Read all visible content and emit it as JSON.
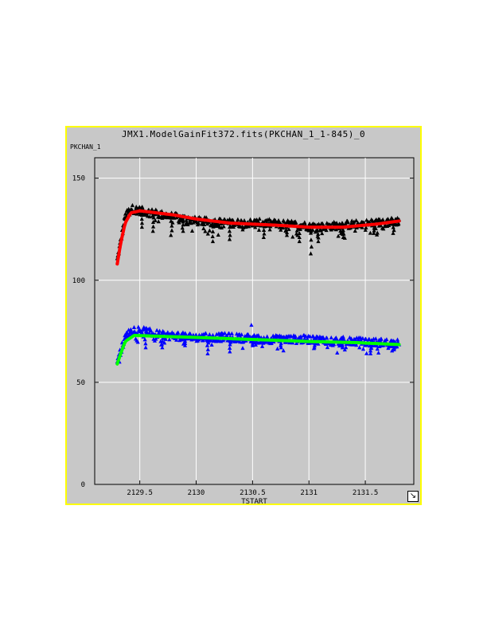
{
  "icons": {
    "resize": "resize-diagonal-icon"
  },
  "colors": {
    "frame": "#ffff00",
    "background": "#c8c8c8"
  },
  "chart_data": {
    "type": "scatter",
    "title": "JMX1.ModelGainFit372.fits(PKCHAN_1_1-845)_0",
    "xlabel": "TSTART",
    "ylabel": "PKCHAN_1",
    "xlim": [
      2129.1,
      2131.93
    ],
    "ylim": [
      0,
      160
    ],
    "x_ticks": [
      2129.5,
      2130,
      2130.5,
      2131,
      2131.5
    ],
    "x_tick_labels": [
      "2129.5",
      "2130",
      "2130.5",
      "2131",
      "2131.5"
    ],
    "y_ticks": [
      0,
      50,
      100,
      150
    ],
    "y_tick_labels": [
      "0",
      "50",
      "100",
      "150"
    ],
    "grid": true,
    "x_range": [
      2129.3,
      2131.8
    ],
    "series": [
      {
        "marker": "triangle",
        "color": "#000000",
        "size": "dense",
        "anchors": [
          [
            2129.3,
            110
          ],
          [
            2129.33,
            119
          ],
          [
            2129.37,
            131
          ],
          [
            2129.42,
            135
          ],
          [
            2129.6,
            133
          ],
          [
            2129.8,
            131
          ],
          [
            2130.0,
            129
          ],
          [
            2130.3,
            128
          ],
          [
            2130.6,
            128
          ],
          [
            2130.9,
            127
          ],
          [
            2131.1,
            126
          ],
          [
            2131.3,
            127
          ],
          [
            2131.6,
            128
          ],
          [
            2131.8,
            129
          ]
        ],
        "dips": [
          [
            2129.52,
            126
          ],
          [
            2129.62,
            124
          ],
          [
            2129.78,
            122
          ],
          [
            2129.88,
            124
          ],
          [
            2130.15,
            119
          ],
          [
            2130.3,
            120
          ],
          [
            2130.6,
            121
          ],
          [
            2130.8,
            122
          ],
          [
            2130.92,
            119
          ],
          [
            2131.02,
            113
          ],
          [
            2131.08,
            119
          ],
          [
            2131.3,
            121
          ],
          [
            2131.58,
            123
          ],
          [
            2131.75,
            123
          ]
        ]
      },
      {
        "marker": "line",
        "color": "#ff0000",
        "anchors": [
          [
            2129.3,
            108
          ],
          [
            2129.33,
            118
          ],
          [
            2129.37,
            128
          ],
          [
            2129.42,
            133
          ],
          [
            2129.5,
            134
          ],
          [
            2129.8,
            132
          ],
          [
            2130.0,
            130
          ],
          [
            2130.3,
            128
          ],
          [
            2130.7,
            127
          ],
          [
            2131.0,
            126
          ],
          [
            2131.3,
            126
          ],
          [
            2131.6,
            127.5
          ],
          [
            2131.8,
            129
          ]
        ]
      },
      {
        "marker": "triangle",
        "color": "#0000ff",
        "size": "dense",
        "anchors": [
          [
            2129.3,
            61
          ],
          [
            2129.34,
            67
          ],
          [
            2129.38,
            73
          ],
          [
            2129.45,
            76
          ],
          [
            2129.7,
            73
          ],
          [
            2130.0,
            72
          ],
          [
            2130.3,
            72
          ],
          [
            2130.6,
            71
          ],
          [
            2131.0,
            71
          ],
          [
            2131.4,
            70
          ],
          [
            2131.8,
            69
          ]
        ],
        "dips": [
          [
            2129.55,
            67
          ],
          [
            2129.7,
            67
          ],
          [
            2129.9,
            68
          ],
          [
            2130.1,
            64
          ],
          [
            2130.3,
            65
          ],
          [
            2130.5,
            68
          ],
          [
            2130.75,
            67
          ],
          [
            2131.05,
            67
          ],
          [
            2131.3,
            67
          ],
          [
            2131.55,
            64
          ],
          [
            2131.75,
            66
          ]
        ],
        "outliers": [
          [
            2130.49,
            78
          ]
        ]
      },
      {
        "marker": "line",
        "color": "#00ff00",
        "anchors": [
          [
            2129.3,
            59
          ],
          [
            2129.33,
            64
          ],
          [
            2129.37,
            70
          ],
          [
            2129.45,
            73
          ],
          [
            2129.7,
            72.5
          ],
          [
            2130.0,
            72
          ],
          [
            2130.5,
            71
          ],
          [
            2131.0,
            70
          ],
          [
            2131.4,
            69.5
          ],
          [
            2131.8,
            68.5
          ]
        ]
      }
    ]
  }
}
